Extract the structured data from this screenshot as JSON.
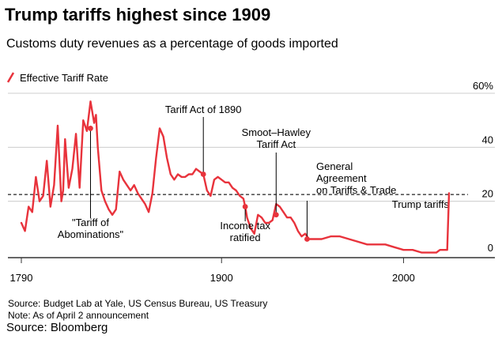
{
  "title": "Trump tariffs highest since 1909",
  "subtitle": "Customs duty revenues as a percentage of goods imported",
  "colors": {
    "line": "#e8333c",
    "reference": "#222222",
    "grid": "#cccccc",
    "annotation": "#000000"
  },
  "chart_data": {
    "type": "line",
    "legend": {
      "label": "Effective Tariff Rate",
      "position": "top-left"
    },
    "xlim": [
      1790,
      2030
    ],
    "ylim": [
      0,
      60
    ],
    "x_ticks": [
      {
        "value": 1790,
        "label": "1790"
      },
      {
        "value": 1900,
        "label": "1900"
      },
      {
        "value": 2000,
        "label": "2000"
      }
    ],
    "y_ticks": [
      {
        "value": 0,
        "label": "0"
      },
      {
        "value": 20,
        "label": "20"
      },
      {
        "value": 40,
        "label": "40"
      },
      {
        "value": 60,
        "label": "60%"
      }
    ],
    "grid": true,
    "reference_line": {
      "y": 22.5,
      "style": "dashed",
      "label": "Trump tariffs"
    },
    "series": [
      {
        "name": "Effective Tariff Rate",
        "x": [
          1790,
          1792,
          1794,
          1796,
          1798,
          1800,
          1802,
          1804,
          1806,
          1808,
          1810,
          1812,
          1813,
          1814,
          1816,
          1818,
          1820,
          1822,
          1824,
          1826,
          1828,
          1830,
          1831,
          1832,
          1834,
          1836,
          1838,
          1840,
          1842,
          1844,
          1846,
          1848,
          1850,
          1852,
          1854,
          1856,
          1858,
          1860,
          1862,
          1864,
          1866,
          1868,
          1870,
          1872,
          1874,
          1876,
          1878,
          1880,
          1882,
          1884,
          1886,
          1888,
          1890,
          1892,
          1894,
          1896,
          1898,
          1900,
          1902,
          1904,
          1906,
          1908,
          1910,
          1912,
          1913,
          1914,
          1916,
          1918,
          1920,
          1922,
          1924,
          1926,
          1928,
          1930,
          1932,
          1934,
          1936,
          1938,
          1940,
          1942,
          1944,
          1946,
          1948,
          1950,
          1955,
          1960,
          1965,
          1970,
          1975,
          1980,
          1985,
          1990,
          1995,
          2000,
          2005,
          2010,
          2015,
          2018,
          2020,
          2022,
          2024,
          2025
        ],
        "values": [
          12,
          9,
          18,
          16,
          29,
          20,
          22,
          35,
          18,
          26,
          48,
          20,
          24,
          43,
          25,
          32,
          45,
          25,
          50,
          46,
          57,
          49,
          52,
          40,
          24,
          20,
          17,
          15,
          17,
          31,
          28,
          26,
          24,
          26,
          23,
          21,
          19,
          16,
          23,
          36,
          47,
          44,
          36,
          30,
          28,
          30,
          29,
          29,
          30,
          30,
          32,
          31,
          30,
          24,
          22,
          28,
          29,
          28,
          27,
          27,
          25,
          24,
          22,
          21,
          18,
          14,
          10,
          8,
          15,
          14,
          12,
          12,
          13,
          19,
          18,
          16,
          14,
          14,
          12,
          9,
          7,
          8,
          6,
          6,
          6,
          7,
          7,
          6,
          5,
          4,
          4,
          4,
          3,
          2,
          2,
          1,
          1,
          1,
          2,
          2,
          2,
          23
        ]
      }
    ],
    "annotations": [
      {
        "label": "\"Tariff of Abominations\"",
        "year": 1828,
        "value": 47
      },
      {
        "label": "Tariff Act of 1890",
        "year": 1890,
        "value": 30
      },
      {
        "label": "Income tax ratified",
        "year": 1913,
        "value": 18
      },
      {
        "label": "Smoot-Hawley Tariff Act",
        "year": 1930,
        "value": 15
      },
      {
        "label": "General Agreement on Tariffs & Trade",
        "year": 1947,
        "value": 6
      }
    ]
  },
  "notes": {
    "source": "Source: Budget Lab at Yale, US Census Bureau, US Treasury",
    "note": "Note: As of April 2 announcement",
    "credit": "Source: Bloomberg"
  }
}
